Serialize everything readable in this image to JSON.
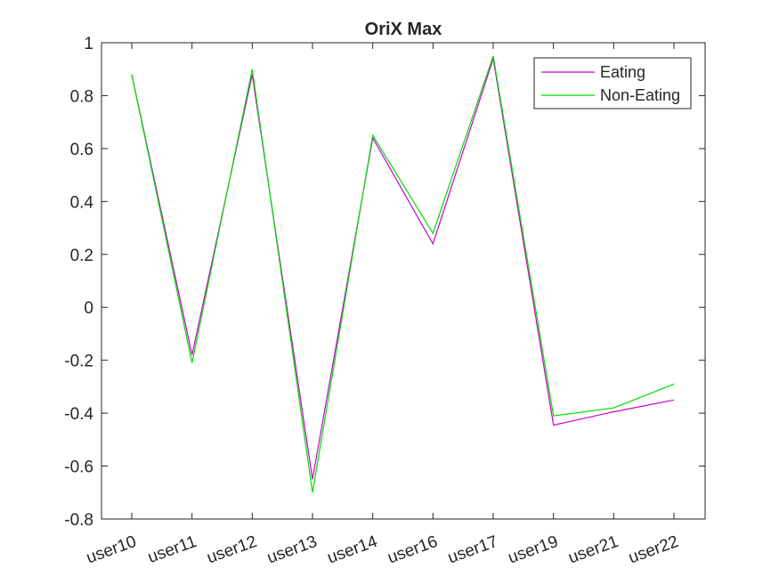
{
  "chart_data": {
    "type": "line",
    "title": "OriX Max",
    "xlabel": "",
    "ylabel": "",
    "categories": [
      "user10",
      "user11",
      "user12",
      "user13",
      "user14",
      "user16",
      "user17",
      "user19",
      "user21",
      "user22"
    ],
    "ylim": [
      -0.8,
      1
    ],
    "yticks": [
      "-0.8",
      "-0.6",
      "-0.4",
      "-0.2",
      "0",
      "0.2",
      "0.4",
      "0.6",
      "0.8",
      "1"
    ],
    "ytick_values": [
      -0.8,
      -0.6,
      -0.4,
      -0.2,
      0,
      0.2,
      0.4,
      0.6,
      0.8,
      1
    ],
    "grid": false,
    "legend_position": "top-right",
    "series": [
      {
        "name": "Eating",
        "color": "#cc00cc",
        "values": [
          0.88,
          -0.18,
          0.88,
          -0.65,
          0.64,
          0.24,
          0.94,
          -0.445,
          -0.395,
          -0.35
        ]
      },
      {
        "name": "Non-Eating",
        "color": "#00dd00",
        "values": [
          0.88,
          -0.21,
          0.9,
          -0.7,
          0.65,
          0.28,
          0.95,
          -0.41,
          -0.38,
          -0.29
        ]
      }
    ]
  }
}
